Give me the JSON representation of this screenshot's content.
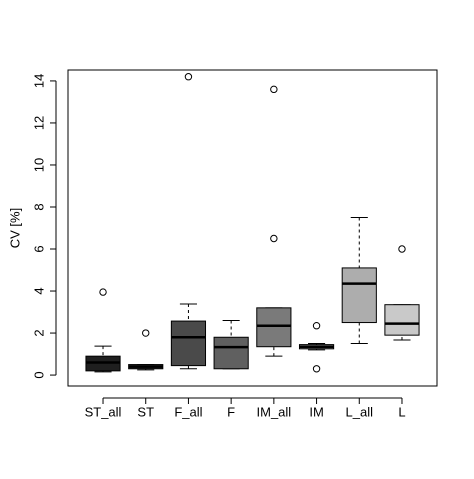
{
  "chart_data": {
    "type": "box",
    "ylabel": "CV [%]",
    "categories": [
      "ST_all",
      "ST",
      "F_all",
      "F",
      "IM_all",
      "IM",
      "L_all",
      "L"
    ],
    "colors": [
      "#1f1f1f",
      "#333333",
      "#4a4a4a",
      "#606060",
      "#7a7a7a",
      "#929292",
      "#adadad",
      "#c9c9c9"
    ],
    "boxes": [
      {
        "whisker_low": 0.15,
        "q1": 0.2,
        "median": 0.6,
        "q3": 0.9,
        "whisker_high": 1.38,
        "outliers": [
          3.95
        ]
      },
      {
        "whisker_low": 0.25,
        "q1": 0.3,
        "median": 0.4,
        "q3": 0.5,
        "whisker_high": 0.5,
        "outliers": [
          2.0
        ]
      },
      {
        "whisker_low": 0.3,
        "q1": 0.45,
        "median": 1.8,
        "q3": 2.57,
        "whisker_high": 3.38,
        "outliers": [
          14.2
        ]
      },
      {
        "whisker_low": 0.3,
        "q1": 0.3,
        "median": 1.33,
        "q3": 1.8,
        "whisker_high": 2.6,
        "outliers": []
      },
      {
        "whisker_low": 0.9,
        "q1": 1.35,
        "median": 2.35,
        "q3": 3.2,
        "whisker_high": 3.2,
        "outliers": [
          6.5,
          13.6
        ]
      },
      {
        "whisker_low": 1.2,
        "q1": 1.25,
        "median": 1.35,
        "q3": 1.45,
        "whisker_high": 1.5,
        "outliers": [
          2.35,
          0.3
        ]
      },
      {
        "whisker_low": 1.5,
        "q1": 2.5,
        "median": 4.35,
        "q3": 5.1,
        "whisker_high": 7.5,
        "outliers": []
      },
      {
        "whisker_low": 1.67,
        "q1": 1.9,
        "median": 2.45,
        "q3": 3.35,
        "whisker_high": 3.35,
        "outliers": [
          6.0
        ]
      }
    ],
    "ylim": [
      -0.52,
      14.52
    ],
    "yticks": [
      0,
      2,
      4,
      6,
      8,
      10,
      12,
      14
    ]
  }
}
